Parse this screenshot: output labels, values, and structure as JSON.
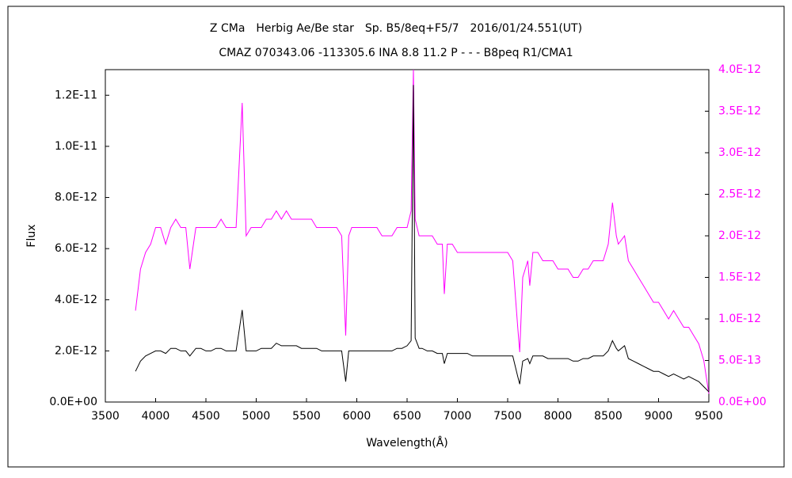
{
  "chart_data": {
    "type": "line",
    "title": "Z CMa　Herbig Ae/Be star　Sp. B5/8eq+F5/7　2016/01/24.551(UT)",
    "subtitle": "CMAZ 070343.06 -113305.6 INA 8.8 11.2 P - - - B8peq R1/CMA1",
    "x_label": "Wavelength(Å)",
    "y_label": "Flux",
    "xlim": [
      3500,
      9500
    ],
    "xticks": [
      3500,
      4000,
      4500,
      5000,
      5500,
      6000,
      6500,
      7000,
      7500,
      8000,
      8500,
      9000,
      9500
    ],
    "ylim": [
      0,
      1.3e-11
    ],
    "yticks": [
      {
        "value": 0,
        "label": "0.0E+00"
      },
      {
        "value": 2e-12,
        "label": "2.0E-12"
      },
      {
        "value": 4e-12,
        "label": "4.0E-12"
      },
      {
        "value": 6e-12,
        "label": "6.0E-12"
      },
      {
        "value": 8e-12,
        "label": "8.0E-12"
      },
      {
        "value": 1e-11,
        "label": "1.0E-11"
      },
      {
        "value": 1.2e-11,
        "label": "1.2E-11"
      }
    ],
    "y2lim": [
      0,
      4e-12
    ],
    "y2ticks": [
      {
        "value": 0,
        "label": "0.0E+00"
      },
      {
        "value": 5e-13,
        "label": "5.0E-13"
      },
      {
        "value": 1e-12,
        "label": "1.0E-12"
      },
      {
        "value": 1.5e-12,
        "label": "1.5E-12"
      },
      {
        "value": 2e-12,
        "label": "2.0E-12"
      },
      {
        "value": 2.5e-12,
        "label": "2.5E-12"
      },
      {
        "value": 3e-12,
        "label": "3.0E-12"
      },
      {
        "value": 3.5e-12,
        "label": "3.5E-12"
      },
      {
        "value": 4e-12,
        "label": "4.0E-12"
      }
    ],
    "y2_color": "#ff00ff",
    "x": [
      3800,
      3850,
      3900,
      3950,
      4000,
      4050,
      4100,
      4150,
      4200,
      4250,
      4300,
      4340,
      4400,
      4450,
      4500,
      4550,
      4600,
      4650,
      4700,
      4750,
      4800,
      4861,
      4900,
      4950,
      5000,
      5050,
      5100,
      5150,
      5200,
      5250,
      5300,
      5350,
      5400,
      5450,
      5500,
      5550,
      5600,
      5650,
      5700,
      5750,
      5800,
      5850,
      5890,
      5920,
      5950,
      6000,
      6050,
      6100,
      6150,
      6200,
      6250,
      6300,
      6350,
      6400,
      6450,
      6500,
      6540,
      6563,
      6580,
      6620,
      6650,
      6700,
      6750,
      6800,
      6850,
      6870,
      6900,
      6950,
      7000,
      7050,
      7100,
      7150,
      7200,
      7250,
      7300,
      7350,
      7400,
      7450,
      7500,
      7550,
      7600,
      7620,
      7650,
      7700,
      7720,
      7750,
      7800,
      7850,
      7900,
      7950,
      8000,
      8050,
      8100,
      8150,
      8200,
      8250,
      8300,
      8350,
      8400,
      8450,
      8500,
      8542,
      8580,
      8600,
      8662,
      8700,
      8750,
      8800,
      8850,
      8900,
      8950,
      9000,
      9050,
      9100,
      9150,
      9200,
      9250,
      9300,
      9350,
      9400,
      9450,
      9500
    ],
    "series": [
      {
        "color": "#ff00ff",
        "axis": "y2",
        "values": [
          1.1e-12,
          1.6e-12,
          1.8e-12,
          1.9e-12,
          2.1e-12,
          2.1e-12,
          1.9e-12,
          2.1e-12,
          2.2e-12,
          2.1e-12,
          2.1e-12,
          1.6e-12,
          2.1e-12,
          2.1e-12,
          2.1e-12,
          2.1e-12,
          2.1e-12,
          2.2e-12,
          2.1e-12,
          2.1e-12,
          2.1e-12,
          3.6e-12,
          2e-12,
          2.1e-12,
          2.1e-12,
          2.1e-12,
          2.2e-12,
          2.2e-12,
          2.3e-12,
          2.2e-12,
          2.3e-12,
          2.2e-12,
          2.2e-12,
          2.2e-12,
          2.2e-12,
          2.2e-12,
          2.1e-12,
          2.1e-12,
          2.1e-12,
          2.1e-12,
          2.1e-12,
          2e-12,
          8e-13,
          2e-12,
          2.1e-12,
          2.1e-12,
          2.1e-12,
          2.1e-12,
          2.1e-12,
          2.1e-12,
          2e-12,
          2e-12,
          2e-12,
          2.1e-12,
          2.1e-12,
          2.1e-12,
          2.3e-12,
          4e-12,
          2.2e-12,
          2e-12,
          2e-12,
          2e-12,
          2e-12,
          1.9e-12,
          1.9e-12,
          1.3e-12,
          1.9e-12,
          1.9e-12,
          1.8e-12,
          1.8e-12,
          1.8e-12,
          1.8e-12,
          1.8e-12,
          1.8e-12,
          1.8e-12,
          1.8e-12,
          1.8e-12,
          1.8e-12,
          1.8e-12,
          1.7e-12,
          9e-13,
          6e-13,
          1.5e-12,
          1.7e-12,
          1.4e-12,
          1.8e-12,
          1.8e-12,
          1.7e-12,
          1.7e-12,
          1.7e-12,
          1.6e-12,
          1.6e-12,
          1.6e-12,
          1.5e-12,
          1.5e-12,
          1.6e-12,
          1.6e-12,
          1.7e-12,
          1.7e-12,
          1.7e-12,
          1.9e-12,
          2.4e-12,
          2e-12,
          1.9e-12,
          2e-12,
          1.7e-12,
          1.6e-12,
          1.5e-12,
          1.4e-12,
          1.3e-12,
          1.2e-12,
          1.2e-12,
          1.1e-12,
          1e-12,
          1.1e-12,
          1e-12,
          9e-13,
          9e-13,
          8e-13,
          7e-13,
          5e-13,
          1e-13
        ]
      },
      {
        "color": "#000000",
        "values": [
          1.2e-12,
          1.6e-12,
          1.8e-12,
          1.9e-12,
          2e-12,
          2e-12,
          1.9e-12,
          2.1e-12,
          2.1e-12,
          2e-12,
          2e-12,
          1.8e-12,
          2.1e-12,
          2.1e-12,
          2e-12,
          2e-12,
          2.1e-12,
          2.1e-12,
          2e-12,
          2e-12,
          2e-12,
          3.6e-12,
          2e-12,
          2e-12,
          2e-12,
          2.1e-12,
          2.1e-12,
          2.1e-12,
          2.3e-12,
          2.2e-12,
          2.2e-12,
          2.2e-12,
          2.2e-12,
          2.1e-12,
          2.1e-12,
          2.1e-12,
          2.1e-12,
          2e-12,
          2e-12,
          2e-12,
          2e-12,
          2e-12,
          8e-13,
          2e-12,
          2e-12,
          2e-12,
          2e-12,
          2e-12,
          2e-12,
          2e-12,
          2e-12,
          2e-12,
          2e-12,
          2.1e-12,
          2.1e-12,
          2.2e-12,
          2.4e-12,
          1.24e-11,
          2.5e-12,
          2.1e-12,
          2.1e-12,
          2e-12,
          2e-12,
          1.9e-12,
          1.9e-12,
          1.5e-12,
          1.9e-12,
          1.9e-12,
          1.9e-12,
          1.9e-12,
          1.9e-12,
          1.8e-12,
          1.8e-12,
          1.8e-12,
          1.8e-12,
          1.8e-12,
          1.8e-12,
          1.8e-12,
          1.8e-12,
          1.8e-12,
          1e-12,
          7e-13,
          1.6e-12,
          1.7e-12,
          1.5e-12,
          1.8e-12,
          1.8e-12,
          1.8e-12,
          1.7e-12,
          1.7e-12,
          1.7e-12,
          1.7e-12,
          1.7e-12,
          1.6e-12,
          1.6e-12,
          1.7e-12,
          1.7e-12,
          1.8e-12,
          1.8e-12,
          1.8e-12,
          2e-12,
          2.4e-12,
          2.1e-12,
          2e-12,
          2.2e-12,
          1.7e-12,
          1.6e-12,
          1.5e-12,
          1.4e-12,
          1.3e-12,
          1.2e-12,
          1.2e-12,
          1.1e-12,
          1e-12,
          1.1e-12,
          1e-12,
          9e-13,
          1e-12,
          9e-13,
          8e-13,
          6e-13,
          4e-13
        ]
      }
    ]
  }
}
